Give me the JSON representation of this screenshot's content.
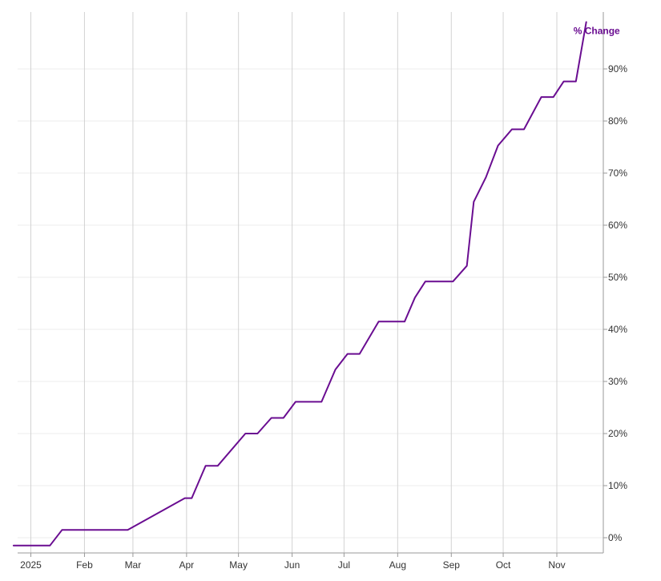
{
  "chart_data": {
    "type": "line",
    "title": "",
    "xlabel": "",
    "ylabel": "",
    "grid": {
      "x": true,
      "y": true
    },
    "y_axis": {
      "position": "right",
      "ylim": [
        -1.5,
        100
      ],
      "ticks": [
        0,
        10,
        20,
        30,
        40,
        50,
        60,
        70,
        80,
        90
      ],
      "tick_labels": [
        "0%",
        "10%",
        "20%",
        "30%",
        "40%",
        "50%",
        "60%",
        "70%",
        "80%",
        "90%"
      ]
    },
    "x_axis": {
      "xlim": [
        "2024-12-22",
        "2025-11-30"
      ],
      "ticks": [
        "2025-01-01",
        "2025-02-01",
        "2025-03-01",
        "2025-04-01",
        "2025-05-01",
        "2025-06-01",
        "2025-07-01",
        "2025-08-01",
        "2025-09-01",
        "2025-10-01",
        "2025-11-01"
      ],
      "tick_labels": [
        "2025",
        "Feb",
        "Mar",
        "Apr",
        "May",
        "Jun",
        "Jul",
        "Aug",
        "Sep",
        "Oct",
        "Nov"
      ]
    },
    "series": [
      {
        "name": "% Change",
        "color": "#6a0d91",
        "points": [
          {
            "x": "2024-12-22",
            "y": -1.5
          },
          {
            "x": "2025-01-12",
            "y": -1.5
          },
          {
            "x": "2025-01-19",
            "y": 1.5
          },
          {
            "x": "2025-02-26",
            "y": 1.5
          },
          {
            "x": "2025-03-31",
            "y": 7.6
          },
          {
            "x": "2025-04-04",
            "y": 7.6
          },
          {
            "x": "2025-04-12",
            "y": 13.8
          },
          {
            "x": "2025-04-19",
            "y": 13.8
          },
          {
            "x": "2025-05-05",
            "y": 20.0
          },
          {
            "x": "2025-05-12",
            "y": 20.0
          },
          {
            "x": "2025-05-20",
            "y": 23.0
          },
          {
            "x": "2025-05-27",
            "y": 23.0
          },
          {
            "x": "2025-06-03",
            "y": 26.1
          },
          {
            "x": "2025-06-18",
            "y": 26.1
          },
          {
            "x": "2025-06-26",
            "y": 32.3
          },
          {
            "x": "2025-07-03",
            "y": 35.3
          },
          {
            "x": "2025-07-10",
            "y": 35.3
          },
          {
            "x": "2025-07-21",
            "y": 41.5
          },
          {
            "x": "2025-08-05",
            "y": 41.5
          },
          {
            "x": "2025-08-11",
            "y": 46.1
          },
          {
            "x": "2025-08-17",
            "y": 49.2
          },
          {
            "x": "2025-09-02",
            "y": 49.2
          },
          {
            "x": "2025-09-10",
            "y": 52.2
          },
          {
            "x": "2025-09-14",
            "y": 64.5
          },
          {
            "x": "2025-09-21",
            "y": 69.2
          },
          {
            "x": "2025-09-28",
            "y": 75.3
          },
          {
            "x": "2025-10-06",
            "y": 78.4
          },
          {
            "x": "2025-10-13",
            "y": 78.4
          },
          {
            "x": "2025-10-23",
            "y": 84.6
          },
          {
            "x": "2025-10-30",
            "y": 84.6
          },
          {
            "x": "2025-11-05",
            "y": 87.6
          },
          {
            "x": "2025-11-12",
            "y": 87.6
          },
          {
            "x": "2025-11-18",
            "y": 99.0
          }
        ]
      }
    ]
  }
}
